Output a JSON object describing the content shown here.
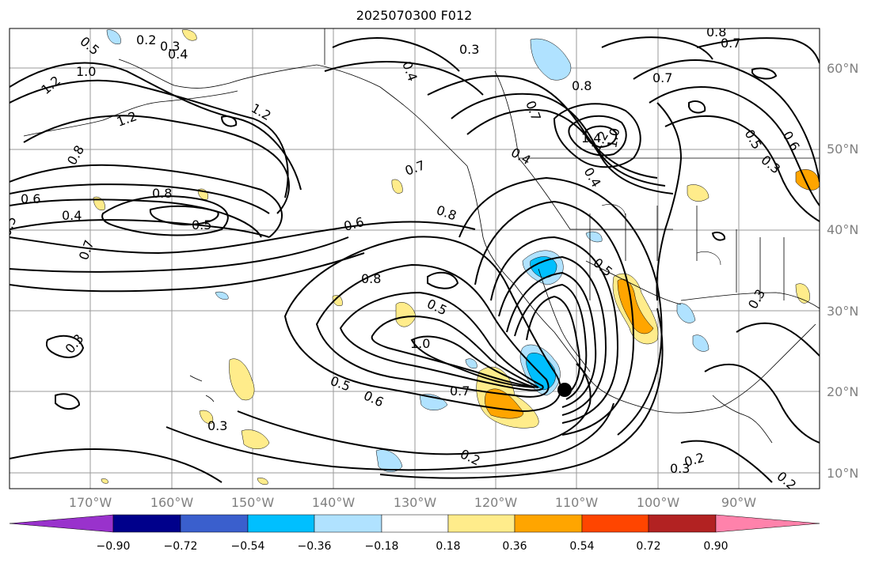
{
  "title": "2025070300 F012",
  "lat_labels": [
    "60°N",
    "50°N",
    "40°N",
    "30°N",
    "20°N",
    "10°N"
  ],
  "lon_labels": [
    "170°W",
    "160°W",
    "150°W",
    "140°W",
    "130°W",
    "120°W",
    "110°W",
    "100°W",
    "90°W"
  ],
  "colorbar": {
    "colors": [
      "#9932cc",
      "#00008b",
      "#3a5fcd",
      "#00bfff",
      "#b0e2ff",
      "#ffffff",
      "#ffec8b",
      "#ffa500",
      "#ff4500",
      "#b22222",
      "#ff82ab"
    ],
    "labels": [
      "−0.90",
      "−0.72",
      "−0.54",
      "−0.36",
      "−0.18",
      "0.18",
      "0.36",
      "0.54",
      "0.72",
      "0.90"
    ]
  },
  "contour_labels": [
    "0.5",
    "0.2",
    "0.3",
    "0.4",
    "1.0",
    "1.2",
    "1.2",
    "1.2",
    "0.8",
    "0.6",
    "0.4",
    "0.8",
    "0.5",
    "0.7",
    "0.3",
    "0.3",
    "0.4",
    "0.3",
    "0.8",
    "0.7",
    "0.7",
    "1.4",
    "1.2",
    "1.0",
    "0.4",
    "0.7",
    "0.8",
    "0.6",
    "0.5",
    "0.8",
    "0.5",
    "1.0",
    "0.5",
    "0.6",
    "0.7",
    "0.2",
    "0.4",
    "0.2",
    "0.3",
    "0.2",
    "0.6",
    "0.5",
    "0.5",
    "0.3",
    "0.8",
    "0.7",
    "0.3"
  ]
}
